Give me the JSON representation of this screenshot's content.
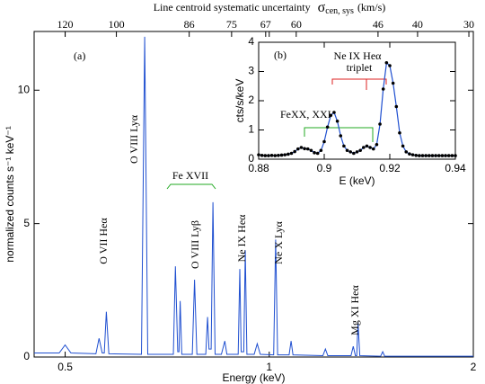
{
  "chart_data": [
    {
      "type": "line",
      "xscale": "log",
      "x2label": {
        "text": "Line centroid systematic uncertainty",
        "symbol": "σ",
        "subscript": "cen, sys",
        "unit": "(km/s)"
      },
      "xlabel": "Energy (keV)",
      "ylabel": "normalized counts s⁻¹ keV⁻¹",
      "xlim": [
        0.45,
        2
      ],
      "ylim": [
        0,
        12.2
      ],
      "xticks": [
        0.5,
        1,
        2
      ],
      "yticks": [
        0,
        5,
        10
      ],
      "x2ticks": [
        {
          "value": 0.5,
          "label": "120"
        },
        {
          "value": 0.595,
          "label": "100"
        },
        {
          "value": 0.762,
          "label": "86"
        },
        {
          "value": 0.88,
          "label": "75"
        },
        {
          "value": 0.988,
          "label": "67"
        },
        {
          "value": 1.096,
          "label": "60"
        },
        {
          "value": 1.447,
          "label": "46"
        },
        {
          "value": 1.655,
          "label": "40"
        },
        {
          "value": 1.97,
          "label": "30"
        }
      ],
      "color": "#1f4fd0",
      "x": [
        0.45,
        0.49,
        0.5,
        0.51,
        0.555,
        0.561,
        0.567,
        0.571,
        0.575,
        0.58,
        0.648,
        0.655,
        0.662,
        0.722,
        0.727,
        0.733,
        0.736,
        0.739,
        0.743,
        0.77,
        0.776,
        0.782,
        0.806,
        0.811,
        0.815,
        0.821,
        0.826,
        0.832,
        0.85,
        0.86,
        0.866,
        0.9,
        0.905,
        0.909,
        0.917,
        0.922,
        0.927,
        0.95,
        0.96,
        0.97,
        1.015,
        1.022,
        1.029,
        1.07,
        1.077,
        1.084,
        1.2,
        1.21,
        1.22,
        1.32,
        1.33,
        1.34,
        1.346,
        1.352,
        1.36,
        1.46,
        1.47,
        1.48,
        2.0
      ],
      "values": [
        0.15,
        0.15,
        0.45,
        0.15,
        0.12,
        0.7,
        0.15,
        0.15,
        1.7,
        0.12,
        0.1,
        12,
        0.1,
        0.1,
        3.4,
        0.2,
        0.2,
        2.1,
        0.1,
        0.1,
        2.9,
        0.1,
        0.1,
        1.5,
        0.3,
        0.3,
        5.8,
        0.1,
        0.1,
        0.6,
        0.1,
        0.1,
        3.3,
        0.2,
        0.2,
        4.0,
        0.1,
        0.1,
        0.5,
        0.1,
        0.08,
        4.4,
        0.08,
        0.08,
        0.6,
        0.08,
        0.05,
        0.3,
        0.05,
        0.05,
        0.4,
        0.05,
        0.05,
        1.3,
        0.05,
        0.03,
        0.2,
        0.03,
        0.03
      ],
      "annotations": [
        "(a)",
        "O VII Heα",
        "O VIII Lyα",
        "Fe XVII",
        "O VIII Lyβ",
        "Ne IX Heα",
        "Ne X Lyα",
        "Mg XI Heα"
      ]
    },
    {
      "type": "line",
      "xlabel": "E (keV)",
      "ylabel": "cts/s/keV",
      "xlim": [
        0.88,
        0.94
      ],
      "ylim": [
        0,
        4
      ],
      "xticks": [
        0.88,
        0.9,
        0.92,
        0.94
      ],
      "yticks": [
        0,
        1,
        2,
        3,
        4
      ],
      "color": "#1f4fd0",
      "marker_color": "#000000",
      "x": [
        0.88,
        0.881,
        0.882,
        0.883,
        0.884,
        0.885,
        0.886,
        0.887,
        0.888,
        0.889,
        0.89,
        0.891,
        0.892,
        0.893,
        0.894,
        0.895,
        0.896,
        0.897,
        0.898,
        0.899,
        0.9,
        0.901,
        0.902,
        0.903,
        0.904,
        0.905,
        0.906,
        0.907,
        0.908,
        0.909,
        0.91,
        0.911,
        0.912,
        0.913,
        0.914,
        0.915,
        0.916,
        0.917,
        0.918,
        0.919,
        0.92,
        0.921,
        0.922,
        0.923,
        0.924,
        0.925,
        0.926,
        0.927,
        0.928,
        0.929,
        0.93,
        0.931,
        0.932,
        0.933,
        0.934,
        0.935,
        0.936,
        0.937,
        0.938,
        0.939,
        0.94
      ],
      "values": [
        0.15,
        0.13,
        0.12,
        0.12,
        0.13,
        0.12,
        0.13,
        0.14,
        0.15,
        0.17,
        0.2,
        0.26,
        0.35,
        0.4,
        0.36,
        0.35,
        0.3,
        0.22,
        0.2,
        0.3,
        0.6,
        1.1,
        1.5,
        1.6,
        1.3,
        0.8,
        0.45,
        0.3,
        0.25,
        0.2,
        0.25,
        0.3,
        0.4,
        0.45,
        0.4,
        0.35,
        0.5,
        1.2,
        2.4,
        3.3,
        3.2,
        2.6,
        1.8,
        0.9,
        0.45,
        0.25,
        0.18,
        0.15,
        0.13,
        0.12,
        0.12,
        0.12,
        0.12,
        0.12,
        0.12,
        0.12,
        0.12,
        0.12,
        0.12,
        0.12,
        0.12
      ],
      "annotations": [
        "(b)",
        "Ne IX Heα",
        "triplet",
        "FeXX, XXI"
      ]
    }
  ]
}
